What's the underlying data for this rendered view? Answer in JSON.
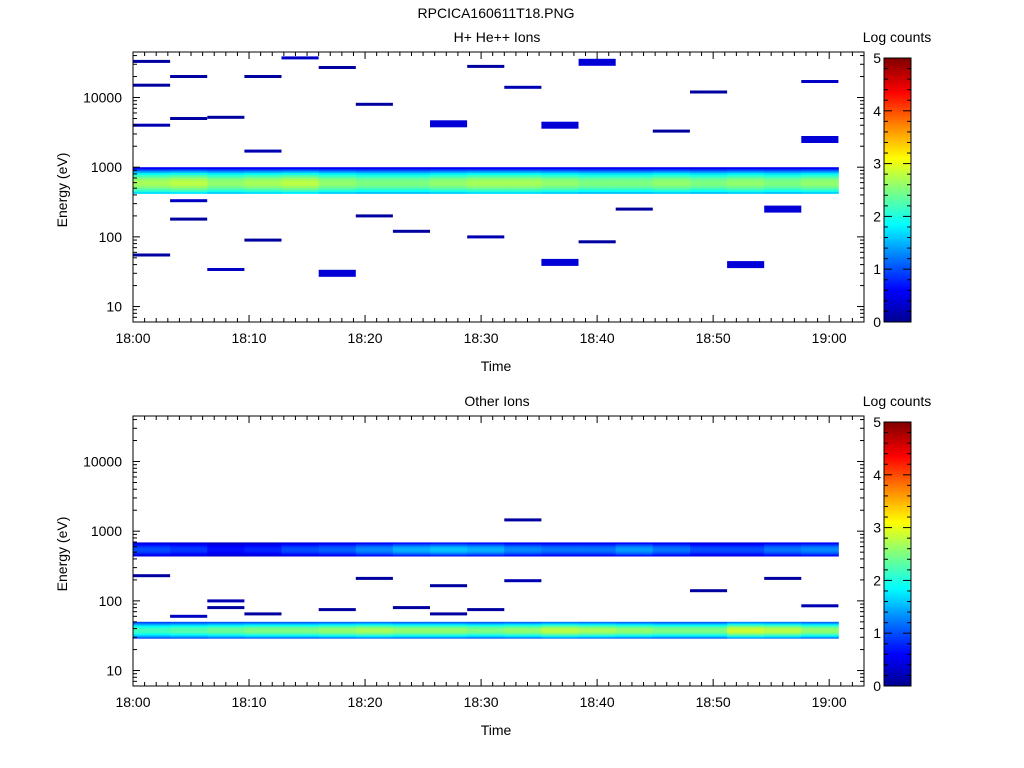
{
  "figure_title": "RPCICA160611T18.PNG",
  "colors": {
    "colormap": [
      "#00008f",
      "#0000ff",
      "#007fff",
      "#00ffff",
      "#7fff7f",
      "#ffff00",
      "#ff7f00",
      "#ff0000",
      "#7f0000"
    ]
  },
  "chart_data": [
    {
      "type": "heatmap",
      "title": "H+ He++ Ions",
      "xlabel": "Time",
      "ylabel": "Energy (eV)",
      "yscale": "log",
      "ylim": [
        6,
        45000
      ],
      "xlim": [
        "18:00",
        "19:03"
      ],
      "x_ticks": [
        "18:00",
        "18:10",
        "18:20",
        "18:30",
        "18:40",
        "18:50",
        "19:00"
      ],
      "y_ticks": [
        "10",
        "100",
        "1000",
        "10000"
      ],
      "colorbar": {
        "label": "Log counts",
        "range": [
          0,
          5
        ],
        "ticks": [
          "0",
          "1",
          "2",
          "3",
          "4",
          "5"
        ]
      },
      "time_bin_minutes": 3.2,
      "band": {
        "energy_range": [
          420,
          1000
        ],
        "peak_energy": 600,
        "peak_log_counts": [
          2.7,
          2.8,
          2.6,
          2.7,
          2.8,
          2.6,
          2.5,
          2.5,
          2.6,
          2.7,
          2.7,
          2.6,
          2.5,
          2.5,
          2.6,
          2.5,
          2.6,
          2.5,
          2.6,
          2.5
        ]
      },
      "sparse_counts": [
        {
          "t": "18:01",
          "e": 33000,
          "v": 0.1
        },
        {
          "t": "18:01",
          "e": 15000,
          "v": 0.1
        },
        {
          "t": "18:01",
          "e": 4000,
          "v": 0.2
        },
        {
          "t": "18:01",
          "e": 55,
          "v": 0.1
        },
        {
          "t": "18:04",
          "e": 20000,
          "v": 0.1
        },
        {
          "t": "18:04",
          "e": 5000,
          "v": 0.1
        },
        {
          "t": "18:04",
          "e": 330,
          "v": 0.3
        },
        {
          "t": "18:04",
          "e": 180,
          "v": 0.1
        },
        {
          "t": "18:07",
          "e": 5200,
          "v": 0.1
        },
        {
          "t": "18:07",
          "e": 34,
          "v": 0.3
        },
        {
          "t": "18:10",
          "e": 20000,
          "v": 0.1
        },
        {
          "t": "18:10",
          "e": 1700,
          "v": 0.2
        },
        {
          "t": "18:10",
          "e": 90,
          "v": 0.1
        },
        {
          "t": "18:13",
          "e": 37000,
          "v": 0.3
        },
        {
          "t": "18:17",
          "e": 27000,
          "v": 0.1
        },
        {
          "t": "18:17",
          "e": 30,
          "v": 0.4
        },
        {
          "t": "18:20",
          "e": 8000,
          "v": 0.1
        },
        {
          "t": "18:20",
          "e": 200,
          "v": 0.1
        },
        {
          "t": "18:23",
          "e": 120,
          "v": 0.1
        },
        {
          "t": "18:27",
          "e": 4200,
          "v": 0.4
        },
        {
          "t": "18:30",
          "e": 28000,
          "v": 0.1
        },
        {
          "t": "18:30",
          "e": 100,
          "v": 0.2
        },
        {
          "t": "18:33",
          "e": 14000,
          "v": 0.2
        },
        {
          "t": "18:37",
          "e": 4000,
          "v": 0.4
        },
        {
          "t": "18:37",
          "e": 43,
          "v": 0.4
        },
        {
          "t": "18:40",
          "e": 32000,
          "v": 0.4
        },
        {
          "t": "18:40",
          "e": 85,
          "v": 0.1
        },
        {
          "t": "18:43",
          "e": 250,
          "v": 0.1
        },
        {
          "t": "18:47",
          "e": 3300,
          "v": 0.1
        },
        {
          "t": "18:50",
          "e": 12000,
          "v": 0.1
        },
        {
          "t": "18:53",
          "e": 40,
          "v": 0.4
        },
        {
          "t": "18:57",
          "e": 250,
          "v": 0.4
        },
        {
          "t": "19:00",
          "e": 2500,
          "v": 0.4
        },
        {
          "t": "19:00",
          "e": 17000,
          "v": 0.3
        }
      ]
    },
    {
      "type": "heatmap",
      "title": "Other Ions",
      "xlabel": "Time",
      "ylabel": "Energy (eV)",
      "yscale": "log",
      "ylim": [
        6,
        45000
      ],
      "xlim": [
        "18:00",
        "19:03"
      ],
      "x_ticks": [
        "18:00",
        "18:10",
        "18:20",
        "18:30",
        "18:40",
        "18:50",
        "19:00"
      ],
      "y_ticks": [
        "10",
        "100",
        "1000",
        "10000"
      ],
      "colorbar": {
        "label": "Log counts",
        "range": [
          0,
          5
        ],
        "ticks": [
          "0",
          "1",
          "2",
          "3",
          "4",
          "5"
        ]
      },
      "time_bin_minutes": 3.2,
      "bands": [
        {
          "energy_range": [
            440,
            690
          ],
          "peak_log_counts": [
            1.0,
            0.9,
            0.7,
            0.8,
            1.0,
            1.1,
            1.3,
            1.5,
            1.6,
            1.5,
            1.3,
            1.2,
            1.2,
            1.4,
            1.2,
            1.0,
            1.0,
            1.2,
            1.3,
            1.4
          ]
        },
        {
          "energy_range": [
            29,
            50
          ],
          "peak_log_counts": [
            2.2,
            2.3,
            2.4,
            2.5,
            2.5,
            2.6,
            2.7,
            2.6,
            2.6,
            2.5,
            2.6,
            2.8,
            2.7,
            2.6,
            2.5,
            2.5,
            2.9,
            2.8,
            2.6,
            2.4
          ]
        }
      ],
      "sparse_counts": [
        {
          "t": "18:01",
          "e": 230,
          "v": 0.1
        },
        {
          "t": "18:04",
          "e": 60,
          "v": 0.3
        },
        {
          "t": "18:07",
          "e": 100,
          "v": 0.2
        },
        {
          "t": "18:07",
          "e": 80,
          "v": 0.1
        },
        {
          "t": "18:10",
          "e": 65,
          "v": 0.1
        },
        {
          "t": "18:17",
          "e": 75,
          "v": 0.1
        },
        {
          "t": "18:20",
          "e": 210,
          "v": 0.1
        },
        {
          "t": "18:23",
          "e": 80,
          "v": 0.1
        },
        {
          "t": "18:27",
          "e": 165,
          "v": 0.1
        },
        {
          "t": "18:27",
          "e": 65,
          "v": 0.1
        },
        {
          "t": "18:30",
          "e": 75,
          "v": 0.1
        },
        {
          "t": "18:33",
          "e": 1450,
          "v": 0.1
        },
        {
          "t": "18:33",
          "e": 195,
          "v": 0.2
        },
        {
          "t": "18:50",
          "e": 140,
          "v": 0.1
        },
        {
          "t": "18:57",
          "e": 210,
          "v": 0.1
        },
        {
          "t": "19:00",
          "e": 85,
          "v": 0.2
        }
      ]
    }
  ]
}
